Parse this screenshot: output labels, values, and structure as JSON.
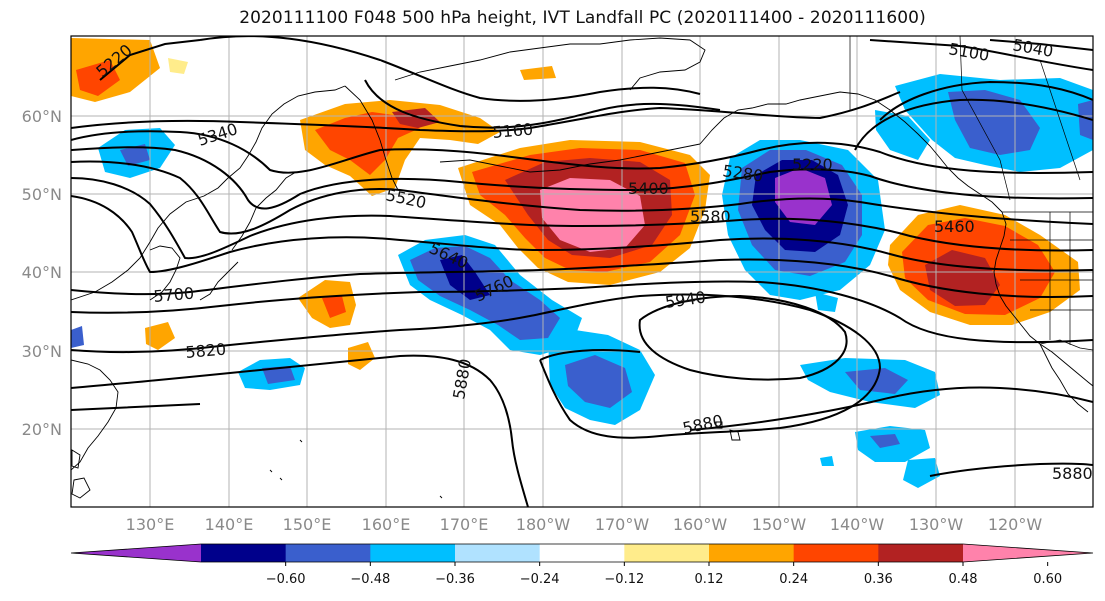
{
  "title": "2020111100 F048 500 hPa height, IVT Landfall PC (2020111400 - 2020111600)",
  "lat_labels": [
    "60°N",
    "50°N",
    "40°N",
    "30°N",
    "20°N"
  ],
  "lon_labels": [
    "130°E",
    "140°E",
    "150°E",
    "160°E",
    "170°E",
    "180°W",
    "170°W",
    "160°W",
    "150°W",
    "140°W",
    "130°W",
    "120°W"
  ],
  "contour_labels": [
    "5220",
    "5340",
    "5160",
    "5520",
    "5400",
    "5280",
    "5220",
    "5100",
    "5040",
    "5580",
    "5460",
    "5640",
    "5760",
    "5700",
    "5820",
    "5940",
    "5880",
    "5880",
    "5880"
  ],
  "colorbar": {
    "tick_labels": [
      "−0.60",
      "−0.48",
      "−0.36",
      "−0.24",
      "−0.12",
      "0.12",
      "0.24",
      "0.36",
      "0.48",
      "0.60"
    ],
    "colors": [
      "#9932cc",
      "#00008b",
      "#3a5fcd",
      "#00bfff",
      "#b0e2ff",
      "#ffffff",
      "#ffec8b",
      "#ffa500",
      "#ff4500",
      "#b22222",
      "#ff82ab"
    ]
  }
}
